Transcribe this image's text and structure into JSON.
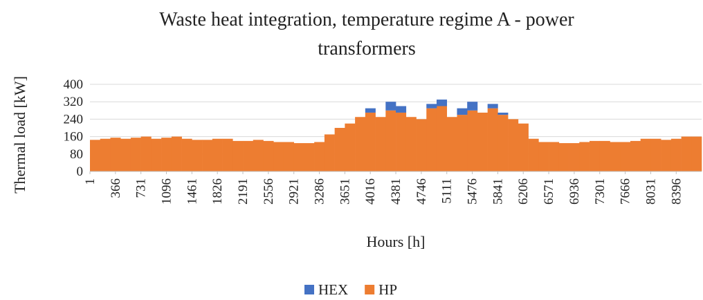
{
  "chart_data": {
    "type": "bar",
    "stacked": true,
    "title": "Waste heat integration, temperature regime A - power transformers",
    "x_label": "Hours [h]",
    "y_label": "Thermal load [kW]",
    "x": [
      1,
      147,
      293,
      439,
      585,
      731,
      877,
      1023,
      1169,
      1315,
      1461,
      1607,
      1753,
      1899,
      2045,
      2191,
      2337,
      2483,
      2629,
      2775,
      2921,
      3067,
      3213,
      3359,
      3505,
      3651,
      3797,
      3943,
      4089,
      4235,
      4381,
      4527,
      4673,
      4819,
      4965,
      5111,
      5257,
      5403,
      5549,
      5695,
      5841,
      5987,
      6133,
      6279,
      6425,
      6571,
      6717,
      6863,
      7009,
      7155,
      7301,
      7447,
      7593,
      7739,
      7885,
      8031,
      8177,
      8323,
      8469,
      8615
    ],
    "series": [
      {
        "name": "HP",
        "color": "#ed7d31",
        "values": [
          145,
          150,
          155,
          150,
          155,
          160,
          150,
          155,
          160,
          150,
          145,
          145,
          150,
          150,
          140,
          140,
          145,
          140,
          135,
          135,
          130,
          130,
          135,
          170,
          200,
          220,
          250,
          270,
          250,
          280,
          270,
          250,
          240,
          290,
          300,
          250,
          260,
          280,
          270,
          290,
          260,
          240,
          220,
          150,
          135,
          135,
          130,
          130,
          135,
          140,
          140,
          135,
          135,
          140,
          150,
          150,
          145,
          150,
          160,
          160
        ]
      },
      {
        "name": "HEX",
        "color": "#4472c4",
        "values": [
          0,
          0,
          0,
          0,
          0,
          0,
          0,
          0,
          0,
          0,
          0,
          0,
          0,
          0,
          0,
          0,
          0,
          0,
          0,
          0,
          0,
          0,
          0,
          0,
          0,
          0,
          0,
          20,
          0,
          40,
          30,
          0,
          0,
          20,
          30,
          0,
          30,
          40,
          0,
          20,
          10,
          0,
          0,
          0,
          0,
          0,
          0,
          0,
          0,
          0,
          0,
          0,
          0,
          0,
          0,
          0,
          0,
          0,
          0,
          0
        ]
      }
    ],
    "legend_order": [
      "HEX",
      "HP"
    ],
    "xlim": [
      1,
      8760
    ],
    "xticks": [
      1,
      366,
      731,
      1096,
      1461,
      1826,
      2191,
      2556,
      2921,
      3286,
      3651,
      4016,
      4381,
      4746,
      5111,
      5476,
      5841,
      6206,
      6571,
      6936,
      7301,
      7666,
      8031,
      8396
    ],
    "ylim": [
      0,
      400
    ],
    "yticks": [
      0,
      80,
      160,
      240,
      320,
      400
    ],
    "grid": true,
    "legend": "bottom"
  }
}
